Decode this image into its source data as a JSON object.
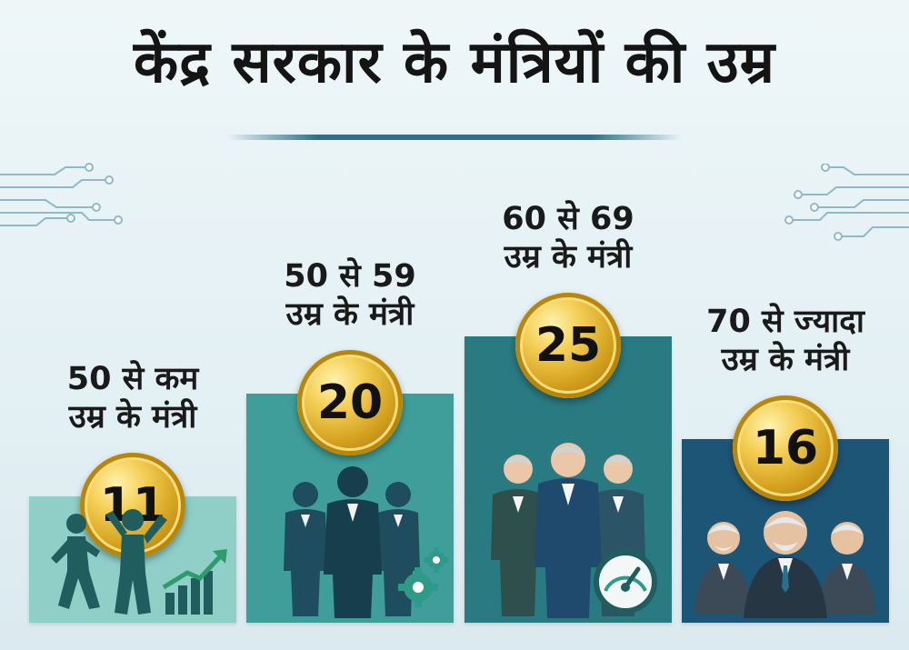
{
  "title": "केंद्र सरकार के मंत्रियों की उम्र",
  "chart_data": {
    "type": "bar",
    "title": "केंद्र सरकार के मंत्रियों की उम्र",
    "categories": [
      [
        "50 से कम",
        "उम्र के मंत्री"
      ],
      [
        "50 से 59",
        "उम्र के मंत्री"
      ],
      [
        "60 से 69",
        "उम्र के मंत्री"
      ],
      [
        "70 से ज्यादा",
        "उम्र के मंत्री"
      ]
    ],
    "values": [
      11,
      20,
      25,
      16
    ],
    "value_labels": [
      "11",
      "20",
      "25",
      "16"
    ],
    "bar_colors": [
      "#8fcfc8",
      "#3f9e99",
      "#2a7a82",
      "#1d5577"
    ],
    "coin_color": "#d9a520",
    "ylim": [
      0,
      25
    ],
    "grid": false,
    "legend": "none"
  },
  "icons": [
    "running-people-icon",
    "growth-chart-icon",
    "businessmen-icon",
    "gear-icon",
    "senior-businessmen-icon",
    "speedometer-icon",
    "elderly-leaders-icon",
    "circuit-lines-icon"
  ]
}
